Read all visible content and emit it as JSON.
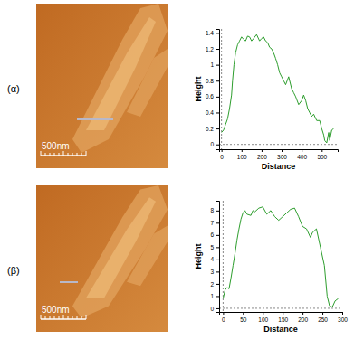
{
  "chart_data": [
    {
      "type": "line",
      "xlabel": "Distance",
      "ylabel": "Height",
      "color": "#2e9e2e",
      "x": [
        0,
        10,
        20,
        30,
        40,
        50,
        55,
        62,
        70,
        80,
        90,
        100,
        110,
        120,
        130,
        140,
        150,
        160,
        175,
        190,
        200,
        210,
        220,
        230,
        240,
        250,
        260,
        270,
        280,
        290,
        300,
        310,
        320,
        335,
        350,
        360,
        370,
        385,
        400,
        410,
        420,
        430,
        440,
        450,
        460,
        475,
        490,
        500,
        510,
        515,
        525,
        535,
        540,
        550,
        560
      ],
      "values": [
        0.15,
        0.18,
        0.25,
        0.32,
        0.45,
        0.62,
        0.8,
        1.0,
        1.15,
        1.25,
        1.3,
        1.35,
        1.32,
        1.3,
        1.36,
        1.35,
        1.3,
        1.33,
        1.38,
        1.3,
        1.33,
        1.35,
        1.3,
        1.28,
        1.22,
        1.2,
        1.15,
        1.08,
        1.0,
        0.9,
        0.85,
        0.8,
        0.75,
        0.85,
        0.7,
        0.65,
        0.6,
        0.5,
        0.55,
        0.62,
        0.55,
        0.45,
        0.4,
        0.35,
        0.38,
        0.3,
        0.3,
        0.2,
        0.12,
        0.05,
        0.02,
        0.15,
        0.05,
        0.18,
        0.2
      ],
      "xlim": [
        -12,
        580
      ],
      "ylim": [
        -0.06,
        1.45
      ],
      "xticks": [
        0,
        100,
        200,
        300,
        400,
        500
      ],
      "yticks": [
        0,
        0.2,
        0.4,
        0.6,
        0.8,
        1,
        1.2,
        1.4
      ],
      "line_style": "solid"
    },
    {
      "type": "line",
      "xlabel": "Distance",
      "ylabel": "Height",
      "color": "#2e9e2e",
      "x": [
        0,
        5,
        10,
        15,
        20,
        25,
        30,
        35,
        40,
        45,
        50,
        55,
        60,
        70,
        75,
        80,
        90,
        100,
        110,
        120,
        130,
        140,
        150,
        160,
        170,
        180,
        190,
        200,
        210,
        220,
        225,
        235,
        245,
        255,
        262,
        268,
        275,
        282,
        290
      ],
      "values": [
        0.8,
        1.5,
        1.7,
        1.6,
        2.5,
        3.5,
        4.5,
        5.6,
        6.5,
        7.3,
        7.8,
        8.0,
        7.7,
        7.6,
        8.0,
        7.9,
        8.2,
        8.3,
        7.7,
        8.0,
        7.5,
        7.2,
        7.5,
        7.8,
        8.1,
        8.2,
        7.5,
        6.7,
        6.5,
        5.8,
        6.2,
        6.5,
        5.0,
        3.5,
        1.0,
        0.2,
        0.1,
        0.6,
        0.8
      ],
      "xlim": [
        -10,
        300
      ],
      "ylim": [
        -0.3,
        8.8
      ],
      "xticks": [
        0,
        50,
        100,
        150,
        200,
        250,
        300
      ],
      "yticks": [
        0,
        1,
        2,
        3,
        4,
        5,
        6,
        7,
        8
      ],
      "line_style": "solid"
    }
  ],
  "panels": [
    {
      "label": "(α)",
      "scale_bar": "500nm"
    },
    {
      "label": "(β)",
      "scale_bar": "500nm"
    }
  ]
}
